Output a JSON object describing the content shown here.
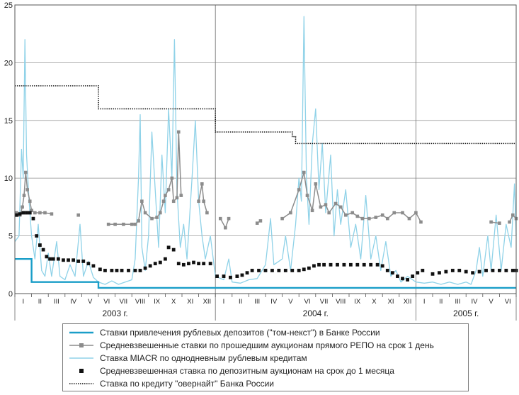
{
  "chart_data": {
    "type": "line",
    "title": "",
    "xlabel": "",
    "ylabel": "",
    "ylim": [
      0,
      25
    ],
    "yticks": [
      "0",
      "5",
      "10",
      "15",
      "20",
      "25"
    ],
    "months": [
      "I",
      "II",
      "III",
      "IV",
      "V",
      "VI",
      "VII",
      "VIII",
      "IX",
      "X",
      "XI",
      "XII",
      "I",
      "II",
      "III",
      "IV",
      "V",
      "VI",
      "VII",
      "VIII",
      "IX",
      "X",
      "XI",
      "XII",
      "I",
      "II",
      "III",
      "IV",
      "V",
      "VI"
    ],
    "years": [
      "2003 г.",
      "2004 г.",
      "2005 г."
    ],
    "x_unit": "months since Jan 2003 (0 = start of January 2003, 30 = end of June 2005)",
    "series": [
      {
        "name": "Ставки привлечения рублевых депозитов (\"том-некст\") в Банке России",
        "style": "step",
        "color": "#1a9ec8",
        "points": [
          [
            0,
            3
          ],
          [
            1.0,
            3
          ],
          [
            1.0,
            1
          ],
          [
            5.0,
            1
          ],
          [
            5.0,
            0.5
          ],
          [
            30,
            0.5
          ]
        ]
      },
      {
        "name": "Средневзвешенные ставки по прошедшим аукционам прямого РЕПО на срок 1 день",
        "style": "line-markers",
        "color": "#8c8c8c",
        "points": [
          [
            0.1,
            7
          ],
          [
            0.3,
            6.8
          ],
          [
            0.45,
            7.5
          ],
          [
            0.55,
            8.5
          ],
          [
            0.65,
            10.5
          ],
          [
            0.75,
            9
          ],
          [
            0.9,
            8
          ],
          [
            1.0,
            7.2
          ],
          [
            1.2,
            7
          ],
          [
            1.5,
            7
          ],
          [
            1.8,
            7
          ],
          [
            2.2,
            6.9
          ],
          [
            3.8,
            6.8
          ],
          [
            5.6,
            6
          ],
          [
            6.0,
            6
          ],
          [
            6.5,
            6
          ],
          [
            7.0,
            6
          ],
          [
            7.2,
            6
          ],
          [
            7.4,
            6.3
          ],
          [
            7.6,
            8
          ],
          [
            7.8,
            7
          ],
          [
            8.2,
            6.5
          ],
          [
            8.5,
            6.6
          ],
          [
            8.7,
            7
          ],
          [
            8.9,
            8
          ],
          [
            9.0,
            8.5
          ],
          [
            9.2,
            9
          ],
          [
            9.4,
            10
          ],
          [
            9.5,
            8
          ],
          [
            9.7,
            8.3
          ],
          [
            9.8,
            14
          ],
          [
            9.95,
            8.5
          ],
          [
            11.0,
            8
          ],
          [
            11.2,
            9.5
          ],
          [
            11.3,
            8
          ],
          [
            11.5,
            7
          ],
          [
            12.3,
            6.5
          ],
          [
            12.6,
            5.7
          ],
          [
            12.8,
            6.5
          ],
          [
            14.5,
            6.1
          ],
          [
            14.7,
            6.3
          ],
          [
            16.0,
            6.5
          ],
          [
            16.5,
            7
          ],
          [
            17.0,
            9
          ],
          [
            17.3,
            10.5
          ],
          [
            17.5,
            8.5
          ],
          [
            17.8,
            7.2
          ],
          [
            18.0,
            9.5
          ],
          [
            18.3,
            7.5
          ],
          [
            18.6,
            7.7
          ],
          [
            18.8,
            7
          ],
          [
            19.2,
            7.8
          ],
          [
            19.5,
            7.5
          ],
          [
            19.8,
            6.8
          ],
          [
            20.2,
            7
          ],
          [
            20.5,
            6.7
          ],
          [
            20.8,
            6.5
          ],
          [
            21.2,
            6.5
          ],
          [
            21.6,
            6.6
          ],
          [
            22.0,
            6.8
          ],
          [
            22.3,
            6.5
          ],
          [
            22.7,
            7
          ],
          [
            23.2,
            7
          ],
          [
            23.6,
            6.5
          ],
          [
            24.0,
            7
          ],
          [
            24.3,
            6.2
          ],
          [
            28.5,
            6.2
          ],
          [
            29.0,
            6.1
          ],
          [
            29.6,
            6.2
          ],
          [
            29.8,
            6.8
          ],
          [
            30.0,
            6.5
          ]
        ]
      },
      {
        "name": "Ставка MIACR по однодневным рублевым кредитам",
        "style": "line",
        "color": "#8fd2e8",
        "points": [
          [
            0,
            4.5
          ],
          [
            0.25,
            5
          ],
          [
            0.4,
            12.5
          ],
          [
            0.5,
            10
          ],
          [
            0.6,
            22
          ],
          [
            0.7,
            12
          ],
          [
            0.85,
            8
          ],
          [
            1.0,
            5
          ],
          [
            1.2,
            3
          ],
          [
            1.4,
            6
          ],
          [
            1.6,
            2
          ],
          [
            1.8,
            1.5
          ],
          [
            2.0,
            3.5
          ],
          [
            2.2,
            1.5
          ],
          [
            2.5,
            4.5
          ],
          [
            2.7,
            1.5
          ],
          [
            3.0,
            1.2
          ],
          [
            3.3,
            2.5
          ],
          [
            3.6,
            1.5
          ],
          [
            3.9,
            6
          ],
          [
            4.1,
            1.5
          ],
          [
            4.4,
            2.8
          ],
          [
            4.7,
            1.4
          ],
          [
            5.0,
            1
          ],
          [
            5.4,
            0.8
          ],
          [
            5.8,
            1.1
          ],
          [
            6.2,
            0.8
          ],
          [
            6.6,
            1
          ],
          [
            7.0,
            1.2
          ],
          [
            7.2,
            3
          ],
          [
            7.4,
            10
          ],
          [
            7.5,
            15.5
          ],
          [
            7.6,
            4
          ],
          [
            7.8,
            2
          ],
          [
            8.0,
            5
          ],
          [
            8.2,
            14
          ],
          [
            8.4,
            9
          ],
          [
            8.6,
            4
          ],
          [
            8.8,
            12
          ],
          [
            9.0,
            7
          ],
          [
            9.2,
            16
          ],
          [
            9.4,
            10
          ],
          [
            9.55,
            22
          ],
          [
            9.7,
            9
          ],
          [
            9.9,
            4
          ],
          [
            10.1,
            6
          ],
          [
            10.3,
            3
          ],
          [
            10.6,
            10
          ],
          [
            10.8,
            15
          ],
          [
            11.0,
            8
          ],
          [
            11.2,
            5
          ],
          [
            11.4,
            3
          ],
          [
            11.7,
            5
          ],
          [
            12.0,
            1.5
          ],
          [
            12.5,
            1.2
          ],
          [
            12.8,
            3
          ],
          [
            13.0,
            1
          ],
          [
            13.5,
            0.9
          ],
          [
            14.0,
            1.2
          ],
          [
            14.5,
            1.3
          ],
          [
            15.0,
            2.5
          ],
          [
            15.3,
            6.5
          ],
          [
            15.5,
            2.5
          ],
          [
            16.0,
            3
          ],
          [
            16.2,
            5
          ],
          [
            16.5,
            2
          ],
          [
            16.8,
            6
          ],
          [
            17.0,
            10
          ],
          [
            17.15,
            8
          ],
          [
            17.3,
            24
          ],
          [
            17.45,
            10
          ],
          [
            17.6,
            6
          ],
          [
            17.8,
            13
          ],
          [
            18.0,
            16
          ],
          [
            18.2,
            9
          ],
          [
            18.4,
            13
          ],
          [
            18.6,
            7
          ],
          [
            18.9,
            12
          ],
          [
            19.1,
            5
          ],
          [
            19.3,
            9
          ],
          [
            19.5,
            6
          ],
          [
            19.8,
            9
          ],
          [
            20.1,
            4
          ],
          [
            20.4,
            6
          ],
          [
            20.7,
            3
          ],
          [
            21.0,
            8.5
          ],
          [
            21.3,
            3
          ],
          [
            21.6,
            5
          ],
          [
            21.9,
            2
          ],
          [
            22.2,
            4.5
          ],
          [
            22.5,
            1.5
          ],
          [
            22.8,
            2
          ],
          [
            23.1,
            1
          ],
          [
            23.5,
            1.5
          ],
          [
            24.0,
            1
          ],
          [
            24.5,
            0.9
          ],
          [
            25.0,
            1
          ],
          [
            25.5,
            0.8
          ],
          [
            26.0,
            1
          ],
          [
            26.5,
            0.8
          ],
          [
            27.0,
            1
          ],
          [
            27.3,
            0.8
          ],
          [
            27.6,
            2
          ],
          [
            27.8,
            4
          ],
          [
            28.0,
            1.5
          ],
          [
            28.3,
            5
          ],
          [
            28.5,
            2
          ],
          [
            28.8,
            6.8
          ],
          [
            29.1,
            2
          ],
          [
            29.4,
            6
          ],
          [
            29.7,
            4
          ],
          [
            29.9,
            9.5
          ],
          [
            30.0,
            5
          ]
        ]
      },
      {
        "name": "Средневзвешенная ставка по депозитным аукционам на срок до 1 месяца",
        "style": "markers",
        "color": "#111111",
        "points": [
          [
            0.1,
            6.8
          ],
          [
            0.3,
            6.9
          ],
          [
            0.5,
            7
          ],
          [
            0.7,
            7
          ],
          [
            0.9,
            7
          ],
          [
            1.1,
            6.5
          ],
          [
            1.3,
            5
          ],
          [
            1.5,
            4.2
          ],
          [
            1.7,
            3.8
          ],
          [
            1.9,
            3.2
          ],
          [
            2.1,
            3
          ],
          [
            2.3,
            3
          ],
          [
            2.6,
            3
          ],
          [
            2.9,
            2.9
          ],
          [
            3.2,
            2.9
          ],
          [
            3.5,
            2.9
          ],
          [
            3.8,
            2.8
          ],
          [
            4.1,
            2.8
          ],
          [
            4.4,
            2.6
          ],
          [
            4.7,
            2.4
          ],
          [
            5.1,
            2.1
          ],
          [
            5.4,
            2
          ],
          [
            5.8,
            2
          ],
          [
            6.1,
            2
          ],
          [
            6.4,
            2
          ],
          [
            6.8,
            2
          ],
          [
            7.2,
            2
          ],
          [
            7.5,
            2
          ],
          [
            7.8,
            2.2
          ],
          [
            8.1,
            2.4
          ],
          [
            8.4,
            2.6
          ],
          [
            8.7,
            2.7
          ],
          [
            9.0,
            3
          ],
          [
            9.2,
            4
          ],
          [
            9.5,
            3.8
          ],
          [
            9.8,
            2.6
          ],
          [
            10.1,
            2.5
          ],
          [
            10.4,
            2.6
          ],
          [
            10.7,
            2.7
          ],
          [
            11.0,
            2.6
          ],
          [
            11.3,
            2.6
          ],
          [
            11.7,
            2.6
          ],
          [
            12.1,
            1.5
          ],
          [
            12.5,
            1.5
          ],
          [
            12.9,
            1.4
          ],
          [
            13.3,
            1.5
          ],
          [
            13.6,
            1.6
          ],
          [
            13.9,
            1.8
          ],
          [
            14.2,
            2
          ],
          [
            14.6,
            2
          ],
          [
            15.0,
            2
          ],
          [
            15.4,
            2
          ],
          [
            15.8,
            2
          ],
          [
            16.2,
            2
          ],
          [
            16.6,
            2
          ],
          [
            17.0,
            2
          ],
          [
            17.3,
            2.1
          ],
          [
            17.6,
            2.2
          ],
          [
            17.9,
            2.4
          ],
          [
            18.2,
            2.5
          ],
          [
            18.5,
            2.5
          ],
          [
            18.9,
            2.5
          ],
          [
            19.3,
            2.5
          ],
          [
            19.7,
            2.5
          ],
          [
            20.1,
            2.5
          ],
          [
            20.5,
            2.5
          ],
          [
            20.9,
            2.5
          ],
          [
            21.3,
            2.5
          ],
          [
            21.7,
            2.5
          ],
          [
            22.0,
            2.4
          ],
          [
            22.3,
            2
          ],
          [
            22.6,
            1.8
          ],
          [
            22.9,
            1.5
          ],
          [
            23.2,
            1.3
          ],
          [
            23.5,
            1.2
          ],
          [
            23.8,
            1.5
          ],
          [
            24.1,
            1.8
          ],
          [
            24.4,
            2
          ],
          [
            25.0,
            1.7
          ],
          [
            25.4,
            1.8
          ],
          [
            25.8,
            1.9
          ],
          [
            26.2,
            2
          ],
          [
            26.6,
            2
          ],
          [
            27.0,
            1.9
          ],
          [
            27.4,
            1.8
          ],
          [
            27.8,
            1.9
          ],
          [
            28.2,
            2
          ],
          [
            28.6,
            2
          ],
          [
            29.0,
            2
          ],
          [
            29.4,
            2
          ],
          [
            29.8,
            2
          ],
          [
            30.0,
            2
          ]
        ]
      },
      {
        "name": "Ставка по кредиту \"овернайт\" Банка России",
        "style": "step-dotted",
        "color": "#111111",
        "points": [
          [
            0,
            18
          ],
          [
            5.0,
            18
          ],
          [
            5.0,
            16
          ],
          [
            12.0,
            16
          ],
          [
            12.0,
            14
          ],
          [
            16.6,
            14
          ],
          [
            16.6,
            13.6
          ],
          [
            16.8,
            13.6
          ],
          [
            16.8,
            13
          ],
          [
            30,
            13
          ]
        ]
      }
    ]
  },
  "legend": {
    "items": [
      {
        "label": "Ставки привлечения рублевых депозитов (\"том-некст\") в Банке России",
        "kind": "thick-line",
        "color": "#1a9ec8"
      },
      {
        "label": "Средневзвешенные ставки по прошедшим аукционам прямого РЕПО на срок 1 день",
        "kind": "line-marker",
        "color": "#8c8c8c"
      },
      {
        "label": "Ставка MIACR по однодневным рублевым кредитам",
        "kind": "thin-line",
        "color": "#8fd2e8"
      },
      {
        "label": "Средневзвешенная ставка по депозитным аукционам на срок до 1 месяца",
        "kind": "marker",
        "color": "#111111"
      },
      {
        "label": "Ставка по кредиту \"овернайт\" Банка России",
        "kind": "dotted-line",
        "color": "#111111"
      }
    ]
  }
}
